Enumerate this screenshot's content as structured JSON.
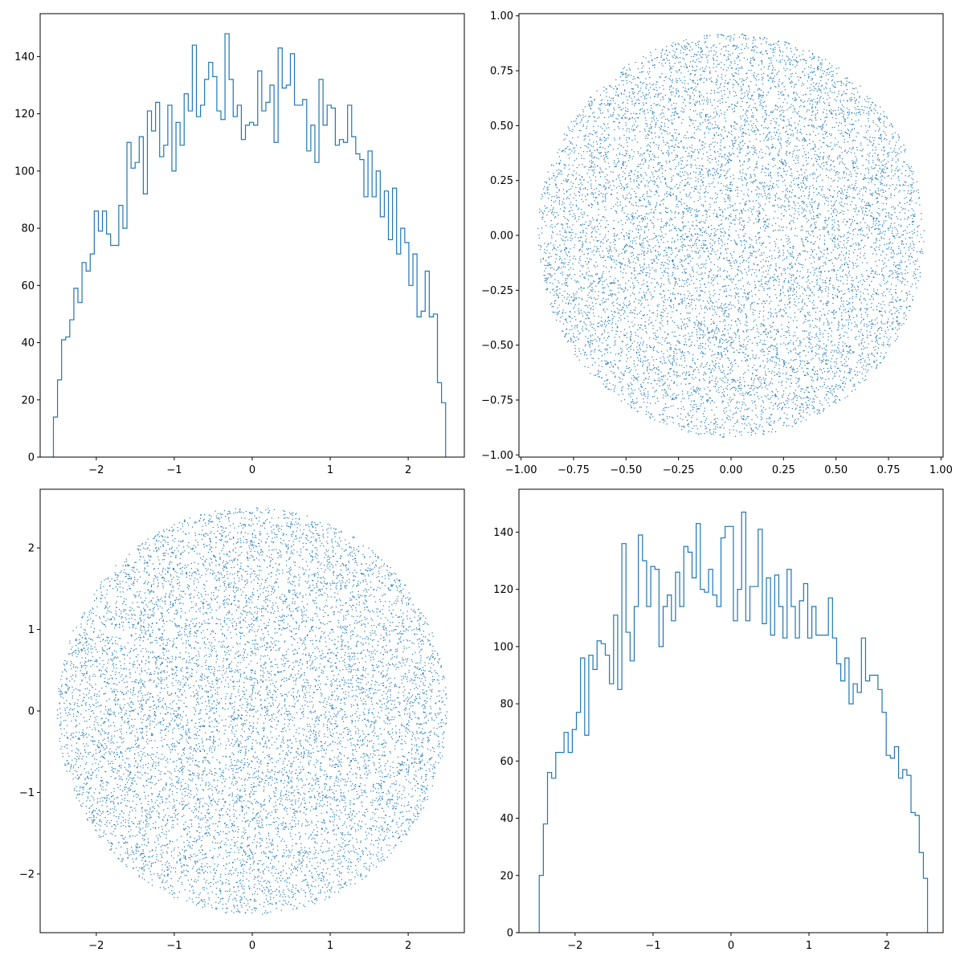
{
  "chart_data": [
    {
      "type": "histogram",
      "position": "top-left",
      "histtype": "step",
      "color": "#1f77b4",
      "xlim": [
        -2.72,
        2.72
      ],
      "ylim": [
        0,
        155
      ],
      "x_ticks": [
        -2,
        -1,
        0,
        1,
        2
      ],
      "y_ticks": [
        0,
        20,
        40,
        60,
        80,
        100,
        120,
        140
      ],
      "bin_start": -2.55,
      "bin_end": 2.48,
      "counts": [
        14,
        27,
        41,
        42,
        48,
        59,
        54,
        68,
        65,
        71,
        86,
        79,
        86,
        78,
        74,
        74,
        88,
        80,
        110,
        101,
        103,
        112,
        92,
        121,
        114,
        124,
        105,
        109,
        123,
        100,
        117,
        109,
        127,
        121,
        144,
        119,
        123,
        132,
        138,
        133,
        121,
        118,
        148,
        132,
        119,
        123,
        111,
        116,
        117,
        116,
        135,
        121,
        124,
        130,
        110,
        143,
        129,
        130,
        141,
        123,
        123,
        125,
        107,
        116,
        103,
        132,
        116,
        123,
        122,
        109,
        111,
        110,
        123,
        112,
        106,
        104,
        91,
        107,
        91,
        100,
        84,
        93,
        76,
        94,
        71,
        80,
        75,
        60,
        71,
        49,
        51,
        65,
        49,
        50,
        26,
        19
      ]
    },
    {
      "type": "scatter",
      "position": "top-right",
      "color": "#1f77b4",
      "xlim": [
        -1.01,
        1.01
      ],
      "ylim": [
        -1.01,
        1.01
      ],
      "x_ticks": [
        "-1.00",
        "-0.75",
        "-0.50",
        "-0.25",
        "0.00",
        "0.25",
        "0.50",
        "0.75",
        "1.00"
      ],
      "y_ticks": [
        "-1.00",
        "-0.75",
        "-0.50",
        "-0.25",
        "0.00",
        "0.25",
        "0.50",
        "0.75",
        "1.00"
      ],
      "distribution": {
        "shape": "uniform disk",
        "radius": 0.92,
        "center": [
          0,
          0
        ],
        "n_points": 10000
      }
    },
    {
      "type": "scatter",
      "position": "bottom-left",
      "color": "#1f77b4",
      "xlim": [
        -2.72,
        2.72
      ],
      "ylim": [
        -2.72,
        2.72
      ],
      "x_ticks": [
        -2,
        -1,
        0,
        1,
        2
      ],
      "y_ticks": [
        -2,
        -1,
        0,
        1,
        2
      ],
      "distribution": {
        "shape": "uniform disk",
        "radius": 2.5,
        "center": [
          0,
          0
        ],
        "n_points": 10000
      }
    },
    {
      "type": "histogram",
      "position": "bottom-right",
      "histtype": "step",
      "color": "#1f77b4",
      "xlim": [
        -2.72,
        2.72
      ],
      "ylim": [
        0,
        155
      ],
      "x_ticks": [
        -2,
        -1,
        0,
        1,
        2
      ],
      "y_ticks": [
        0,
        20,
        40,
        60,
        80,
        100,
        120,
        140
      ],
      "bin_start": -2.46,
      "bin_end": 2.52,
      "counts": [
        20,
        38,
        56,
        54,
        63,
        63,
        70,
        63,
        71,
        77,
        96,
        69,
        97,
        92,
        102,
        101,
        97,
        87,
        111,
        85,
        136,
        105,
        95,
        114,
        139,
        130,
        114,
        128,
        127,
        100,
        114,
        118,
        109,
        126,
        114,
        135,
        133,
        124,
        143,
        120,
        119,
        127,
        118,
        114,
        138,
        142,
        142,
        109,
        120,
        147,
        109,
        121,
        121,
        141,
        108,
        124,
        104,
        125,
        114,
        103,
        127,
        114,
        103,
        116,
        122,
        103,
        114,
        104,
        104,
        104,
        117,
        103,
        94,
        88,
        96,
        80,
        87,
        84,
        103,
        88,
        90,
        90,
        85,
        77,
        62,
        61,
        65,
        54,
        57,
        55,
        42,
        41,
        28,
        19
      ]
    }
  ]
}
